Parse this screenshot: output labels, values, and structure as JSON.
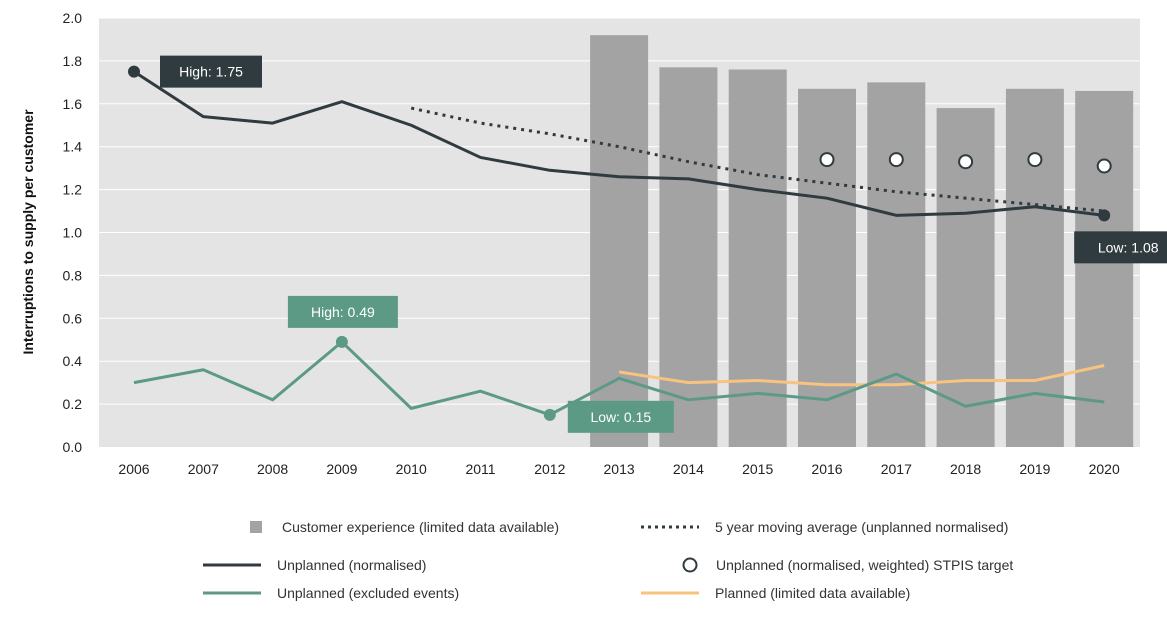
{
  "chart_data": {
    "type": "bar",
    "ylabel": "Interruptions to supply per customer",
    "xlabel": "",
    "ylim": [
      0,
      2.0
    ],
    "yticks": [
      "0.0",
      "0.2",
      "0.4",
      "0.6",
      "0.8",
      "1.0",
      "1.2",
      "1.4",
      "1.6",
      "1.8",
      "2.0"
    ],
    "categories": [
      "2006",
      "2007",
      "2008",
      "2009",
      "2010",
      "2011",
      "2012",
      "2013",
      "2014",
      "2015",
      "2016",
      "2017",
      "2018",
      "2019",
      "2020"
    ],
    "grid": true,
    "legend_position": "bottom",
    "colors": {
      "plot_bg": "#e4e4e4",
      "grid": "#ffffff",
      "bar": "#a3a3a3",
      "unplanned": "#2f3b3e",
      "excluded": "#5c9a86",
      "planned": "#f7c37f",
      "target_fill": "#ffffff",
      "target_stroke": "#2f3b3e"
    },
    "series": [
      {
        "key": "customer_experience",
        "name": "Customer experience (limited data available)",
        "kind": "bar",
        "x": [
          "2013",
          "2014",
          "2015",
          "2016",
          "2017",
          "2018",
          "2019",
          "2020"
        ],
        "values": [
          1.92,
          1.77,
          1.76,
          1.67,
          1.7,
          1.58,
          1.67,
          1.66
        ]
      },
      {
        "key": "moving_average",
        "name": "5 year moving average (unplanned normalised)",
        "kind": "dotted-line",
        "x": [
          "2010",
          "2011",
          "2012",
          "2013",
          "2014",
          "2015",
          "2016",
          "2017",
          "2018",
          "2019",
          "2020"
        ],
        "values": [
          1.58,
          1.51,
          1.46,
          1.4,
          1.33,
          1.27,
          1.23,
          1.19,
          1.16,
          1.13,
          1.1
        ]
      },
      {
        "key": "unplanned",
        "name": "Unplanned (normalised)",
        "kind": "line",
        "x": [
          "2006",
          "2007",
          "2008",
          "2009",
          "2010",
          "2011",
          "2012",
          "2013",
          "2014",
          "2015",
          "2016",
          "2017",
          "2018",
          "2019",
          "2020"
        ],
        "values": [
          1.75,
          1.54,
          1.51,
          1.61,
          1.5,
          1.35,
          1.29,
          1.26,
          1.25,
          1.2,
          1.16,
          1.08,
          1.09,
          1.12,
          1.08
        ]
      },
      {
        "key": "stpis_target",
        "name": "Unplanned (normalised, weighted) STPIS target",
        "kind": "marker",
        "x": [
          "2016",
          "2017",
          "2018",
          "2019",
          "2020"
        ],
        "values": [
          1.34,
          1.34,
          1.33,
          1.34,
          1.31
        ]
      },
      {
        "key": "excluded",
        "name": "Unplanned (excluded events)",
        "kind": "line",
        "x": [
          "2006",
          "2007",
          "2008",
          "2009",
          "2010",
          "2011",
          "2012",
          "2013",
          "2014",
          "2015",
          "2016",
          "2017",
          "2018",
          "2019",
          "2020"
        ],
        "values": [
          0.3,
          0.36,
          0.22,
          0.49,
          0.18,
          0.26,
          0.15,
          0.32,
          0.22,
          0.25,
          0.22,
          0.34,
          0.19,
          0.25,
          0.21
        ]
      },
      {
        "key": "planned",
        "name": "Planned (limited data available)",
        "kind": "line",
        "x": [
          "2013",
          "2014",
          "2015",
          "2016",
          "2017",
          "2018",
          "2019",
          "2020"
        ],
        "values": [
          0.35,
          0.3,
          0.31,
          0.29,
          0.29,
          0.31,
          0.31,
          0.38
        ]
      }
    ],
    "annotations": [
      {
        "text": "High: 1.75",
        "series": "unplanned",
        "x": "2006",
        "value": 1.75,
        "style": "dark"
      },
      {
        "text": "Low: 1.08",
        "series": "unplanned",
        "x": "2020",
        "value": 1.08,
        "style": "dark"
      },
      {
        "text": "High: 0.49",
        "series": "excluded",
        "x": "2009",
        "value": 0.49,
        "style": "green"
      },
      {
        "text": "Low: 0.15",
        "series": "excluded",
        "x": "2012",
        "value": 0.15,
        "style": "green"
      }
    ]
  }
}
